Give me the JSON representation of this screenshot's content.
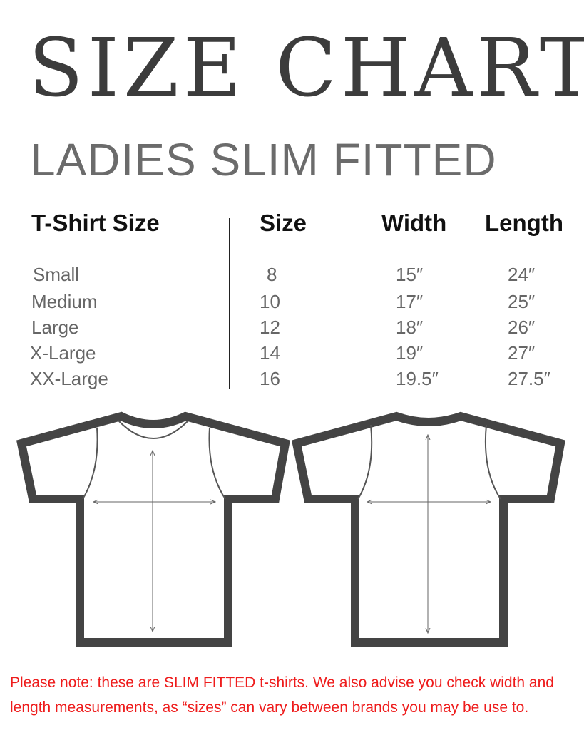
{
  "title": "SIZE CHART",
  "subtitle": "LADIES SLIM FITTED",
  "table": {
    "headers": [
      "T-Shirt Size",
      "Size",
      "Width",
      "Length"
    ],
    "rows": [
      [
        "Small",
        "8",
        "15″",
        "24″"
      ],
      [
        "Medium",
        "10",
        "17″",
        "25″"
      ],
      [
        "Large",
        "12",
        "18″",
        "26″"
      ],
      [
        "X-Large",
        "14",
        "19″",
        "27″"
      ],
      [
        "XX-Large",
        "16",
        "19.5″",
        "27.5″"
      ]
    ]
  },
  "note": "Please note: these are SLIM FITTED t-shirts. We also advise you check width and length measurements, as  “sizes” can vary between brands you may be use to.",
  "colors": {
    "title": "#3c3c3c",
    "note": "#ee1c1c",
    "outline": "#444444"
  }
}
